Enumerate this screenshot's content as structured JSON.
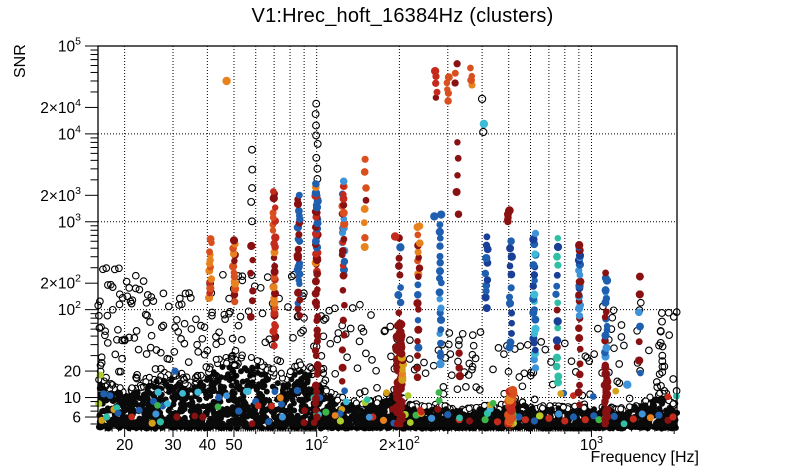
{
  "chart_data": {
    "type": "scatter",
    "title": "V1:Hrec_hoft_16384Hz (clusters)",
    "xlabel": "Frequency [Hz]",
    "ylabel": "SNR",
    "xscale": "log",
    "yscale": "log",
    "xlim": [
      16,
      2048
    ],
    "ylim": [
      4.5,
      100000
    ],
    "grid": true,
    "x_ticks": [
      {
        "v": 20,
        "label": "20"
      },
      {
        "v": 30,
        "label": "30"
      },
      {
        "v": 40,
        "label": "40"
      },
      {
        "v": 50,
        "label": "50"
      },
      {
        "v": 100,
        "label": "10^2"
      },
      {
        "v": 200,
        "label": "2×10^2"
      },
      {
        "v": 1000,
        "label": "10^3"
      }
    ],
    "y_ticks": [
      {
        "v": 6,
        "label": "6"
      },
      {
        "v": 10,
        "label": "10"
      },
      {
        "v": 20,
        "label": "20"
      },
      {
        "v": 100,
        "label": "10^2"
      },
      {
        "v": 200,
        "label": "2×10^2"
      },
      {
        "v": 1000,
        "label": "10^3"
      },
      {
        "v": 2000,
        "label": "2×10^3"
      },
      {
        "v": 10000,
        "label": "10^4"
      },
      {
        "v": 20000,
        "label": "2×10^4"
      },
      {
        "v": 100000,
        "label": "10^5"
      }
    ],
    "x_grid": [
      20,
      30,
      40,
      50,
      60,
      70,
      80,
      90,
      100,
      200,
      300,
      400,
      500,
      600,
      700,
      800,
      900,
      1000
    ],
    "y_grid": [
      10,
      100,
      1000,
      10000,
      100000
    ],
    "palette": {
      "black": "#0a0a0a",
      "maroon": "#8a1111",
      "red": "#c42b1c",
      "orangered": "#d94f1e",
      "orange": "#e8821e",
      "gold": "#d4a017",
      "yellowgreen": "#aecf2b",
      "green": "#3db54a",
      "teal": "#2ebfa5",
      "cyan": "#3fbbd8",
      "lightblue": "#3f93d8",
      "blue": "#1f5faf",
      "darkblue": "#1a3f96"
    },
    "floor": {
      "snr_min": 4.5,
      "count": 2600,
      "profile": [
        [
          16,
          18
        ],
        [
          18,
          14
        ],
        [
          20,
          13
        ],
        [
          23,
          15
        ],
        [
          26,
          19
        ],
        [
          30,
          21
        ],
        [
          33,
          15
        ],
        [
          36,
          16
        ],
        [
          40,
          24
        ],
        [
          45,
          30
        ],
        [
          50,
          29
        ],
        [
          55,
          33
        ],
        [
          60,
          30
        ],
        [
          65,
          25
        ],
        [
          70,
          21
        ],
        [
          78,
          18
        ],
        [
          85,
          26
        ],
        [
          95,
          23
        ],
        [
          105,
          16
        ],
        [
          115,
          11
        ],
        [
          130,
          9.5
        ],
        [
          150,
          9
        ],
        [
          170,
          10
        ],
        [
          190,
          13
        ],
        [
          200,
          11
        ],
        [
          220,
          9
        ],
        [
          250,
          8
        ],
        [
          280,
          8.5
        ],
        [
          300,
          8
        ],
        [
          340,
          7.5
        ],
        [
          380,
          8
        ],
        [
          420,
          8.5
        ],
        [
          460,
          8
        ],
        [
          500,
          9
        ],
        [
          560,
          9.5
        ],
        [
          620,
          8
        ],
        [
          700,
          8.5
        ],
        [
          800,
          8
        ],
        [
          900,
          8.5
        ],
        [
          1000,
          8
        ],
        [
          1100,
          8.5
        ],
        [
          1250,
          7.5
        ],
        [
          1400,
          8
        ],
        [
          1550,
          9
        ],
        [
          1700,
          12
        ],
        [
          1850,
          13
        ],
        [
          1950,
          9
        ],
        [
          2048,
          8.5
        ]
      ]
    },
    "open_circle_regions": [
      {
        "f": [
          16,
          24
        ],
        "s": [
          12,
          300
        ],
        "n": 55
      },
      {
        "f": [
          24,
          40
        ],
        "s": [
          12,
          160
        ],
        "n": 55
      },
      {
        "f": [
          40,
          90
        ],
        "s": [
          12,
          250
        ],
        "n": 60
      },
      {
        "f": [
          90,
          200
        ],
        "s": [
          10,
          120
        ],
        "n": 45
      },
      {
        "f": [
          200,
          420
        ],
        "s": [
          9,
          60
        ],
        "n": 35
      },
      {
        "f": [
          420,
          1000
        ],
        "s": [
          9,
          45
        ],
        "n": 30
      },
      {
        "f": [
          1000,
          2048
        ],
        "s": [
          9,
          120
        ],
        "n": 38
      }
    ],
    "columns": [
      {
        "f": 41,
        "s": [
          130,
          620
        ],
        "n": 14,
        "colors": [
          "orange",
          "orangered",
          "red"
        ]
      },
      {
        "f": 50,
        "s": [
          130,
          650
        ],
        "n": 14,
        "colors": [
          "orangered",
          "orange",
          "maroon"
        ]
      },
      {
        "f": 58,
        "s": [
          1000,
          6300
        ],
        "n": 5,
        "colors": [
          "open"
        ]
      },
      {
        "f": 58,
        "s": [
          80,
          550
        ],
        "n": 6,
        "colors": [
          "maroon"
        ]
      },
      {
        "f": 70,
        "s": [
          40,
          2300
        ],
        "n": 30,
        "colors": [
          "orangered",
          "maroon",
          "orange",
          "red"
        ]
      },
      {
        "f": 86,
        "s": [
          90,
          1900
        ],
        "n": 26,
        "colors": [
          "blue",
          "blue",
          "maroon"
        ]
      },
      {
        "f": 100,
        "s": [
          3200,
          22000
        ],
        "n": 8,
        "colors": [
          "open"
        ]
      },
      {
        "f": 100,
        "s": [
          250,
          2800
        ],
        "n": 34,
        "colors": [
          "blue",
          "blue",
          "maroon",
          "red",
          "orange"
        ]
      },
      {
        "f": 100,
        "s": [
          6,
          250
        ],
        "n": 22,
        "colors": [
          "maroon"
        ]
      },
      {
        "f": 125,
        "s": [
          250,
          2900
        ],
        "n": 26,
        "colors": [
          "maroon",
          "blue",
          "lightblue",
          "red",
          "orangered"
        ]
      },
      {
        "f": 125,
        "s": [
          15,
          250
        ],
        "n": 8,
        "colors": [
          "maroon"
        ]
      },
      {
        "f": 150,
        "s": [
          500,
          4800
        ],
        "n": 8,
        "colors": [
          "orange",
          "maroon",
          "orangered"
        ]
      },
      {
        "f": 200,
        "s": [
          4.8,
          70
        ],
        "n": 45,
        "colors": [
          "maroon"
        ],
        "xj": 2.6,
        "r": 4.2
      },
      {
        "f": 200,
        "s": [
          90,
          640
        ],
        "n": 9,
        "colors": [
          "maroon",
          "blue"
        ]
      },
      {
        "f": 205,
        "s": [
          15,
          40
        ],
        "n": 10,
        "colors": [
          "orange",
          "gold",
          "maroon"
        ]
      },
      {
        "f": 235,
        "s": [
          250,
          950
        ],
        "n": 10,
        "colors": [
          "orangered",
          "maroon",
          "orange"
        ]
      },
      {
        "f": 233,
        "s": [
          18,
          250
        ],
        "n": 12,
        "colors": [
          "blue",
          "maroon"
        ]
      },
      {
        "f": 282,
        "s": [
          28,
          1150
        ],
        "n": 20,
        "colors": [
          "blue",
          "lightblue",
          "blue"
        ]
      },
      {
        "f": 272,
        "s": [
          26000,
          50000
        ],
        "n": 5,
        "colors": [
          "red",
          "maroon"
        ]
      },
      {
        "f": 300,
        "s": [
          24000,
          46000
        ],
        "n": 5,
        "colors": [
          "orangered",
          "orange"
        ]
      },
      {
        "f": 322,
        "s": [
          40000,
          62000
        ],
        "n": 3,
        "colors": [
          "maroon",
          "orangered"
        ]
      },
      {
        "f": 366,
        "s": [
          36000,
          56000
        ],
        "n": 4,
        "colors": [
          "orange",
          "orangered"
        ]
      },
      {
        "f": 325,
        "s": [
          1300,
          8500
        ],
        "n": 5,
        "colors": [
          "maroon"
        ]
      },
      {
        "f": 330,
        "s": [
          18,
          30
        ],
        "n": 3,
        "colors": [
          "maroon"
        ]
      },
      {
        "f": 415,
        "s": [
          110,
          680
        ],
        "n": 11,
        "colors": [
          "blue",
          "darkblue"
        ]
      },
      {
        "f": 500,
        "s": [
          950,
          1400
        ],
        "n": 6,
        "colors": [
          "maroon"
        ]
      },
      {
        "f": 508,
        "s": [
          35,
          620
        ],
        "n": 13,
        "colors": [
          "blue",
          "darkblue"
        ]
      },
      {
        "f": 508,
        "s": [
          4.6,
          12
        ],
        "n": 24,
        "colors": [
          "orange",
          "orangered",
          "red"
        ],
        "xj": 2.4,
        "r": 4.2
      },
      {
        "f": 620,
        "s": [
          22,
          720
        ],
        "n": 24,
        "colors": [
          "blue",
          "darkblue",
          "lightblue",
          "cyan"
        ]
      },
      {
        "f": 750,
        "s": [
          14,
          620
        ],
        "n": 17,
        "colors": [
          "maroon",
          "blue",
          "teal",
          "darkblue"
        ]
      },
      {
        "f": 905,
        "s": [
          80,
          560
        ],
        "n": 22,
        "colors": [
          "blue",
          "lightblue",
          "darkblue",
          "maroon"
        ]
      },
      {
        "f": 905,
        "s": [
          8,
          60
        ],
        "n": 8,
        "colors": [
          "maroon"
        ]
      },
      {
        "f": 1130,
        "s": [
          18,
          270
        ],
        "n": 20,
        "colors": [
          "blue",
          "lightblue",
          "maroon"
        ]
      },
      {
        "f": 1130,
        "s": [
          4.8,
          18
        ],
        "n": 18,
        "colors": [
          "maroon"
        ],
        "xj": 2.0,
        "r": 3.8
      },
      {
        "f": 1500,
        "s": [
          18,
          230
        ],
        "n": 7,
        "colors": [
          "maroon",
          "blue",
          "lightblue"
        ]
      },
      {
        "f": 1800,
        "s": [
          14,
          95
        ],
        "n": 8,
        "colors": [
          "open"
        ]
      }
    ],
    "singles": [
      [
        47,
        40000,
        "orange"
      ],
      [
        406,
        13000,
        "cyan"
      ],
      [
        404,
        10500,
        "open"
      ],
      [
        400,
        25000,
        "open"
      ],
      [
        268,
        1150,
        "blue"
      ],
      [
        193,
        680,
        "red"
      ],
      [
        282,
        24,
        "lightblue"
      ],
      [
        1350,
        14,
        "lightblue"
      ]
    ],
    "floor_sprinkles": {
      "count": 55,
      "snr": [
        4.7,
        12
      ],
      "colors": [
        "blue",
        "blue",
        "lightblue",
        "red",
        "maroon",
        "maroon",
        "cyan",
        "green",
        "gold",
        "orange",
        "teal",
        "yellowgreen"
      ]
    },
    "sprinkle_points": [
      [
        16.3,
        18,
        "yellowgreen"
      ],
      [
        16.1,
        8.5,
        "yellowgreen"
      ],
      [
        16.5,
        5.5,
        "gold"
      ],
      [
        18.3,
        7.3,
        "gold"
      ],
      [
        16.8,
        11,
        "blue"
      ],
      [
        17.2,
        6,
        "teal"
      ],
      [
        25.5,
        9,
        "blue"
      ],
      [
        26,
        6.5,
        "lightblue"
      ],
      [
        26.5,
        11.5,
        "cyan"
      ],
      [
        27,
        5.3,
        "teal"
      ],
      [
        27.5,
        8,
        "blue"
      ],
      [
        25.2,
        5.1,
        "gold"
      ],
      [
        30.5,
        20,
        "blue"
      ],
      [
        31,
        6,
        "maroon"
      ],
      [
        37,
        11.5,
        "cyan"
      ],
      [
        38.5,
        6,
        "maroon"
      ],
      [
        44,
        10,
        "blue"
      ],
      [
        52,
        7,
        "blue"
      ],
      [
        60,
        9,
        "blue"
      ],
      [
        75,
        6,
        "lightblue"
      ],
      [
        85,
        12,
        "blue"
      ],
      [
        90,
        5.2,
        "maroon"
      ],
      [
        100,
        6.5,
        "green"
      ],
      [
        108,
        6.8,
        "green"
      ],
      [
        122,
        5.4,
        "yellowgreen"
      ],
      [
        150,
        8.8,
        "yellowgreen"
      ],
      [
        160,
        6,
        "red"
      ],
      [
        175,
        5.5,
        "orange"
      ],
      [
        210,
        6.4,
        "yellowgreen"
      ],
      [
        230,
        6.3,
        "green"
      ],
      [
        240,
        6.6,
        "gold"
      ],
      [
        262,
        5.8,
        "lightblue"
      ],
      [
        300,
        6.4,
        "blue"
      ],
      [
        330,
        5.6,
        "red"
      ],
      [
        360,
        5.4,
        "maroon"
      ],
      [
        410,
        5.6,
        "green"
      ],
      [
        418,
        6.6,
        "teal"
      ],
      [
        428,
        7.4,
        "cyan"
      ],
      [
        455,
        5.3,
        "red"
      ],
      [
        520,
        5.1,
        "yellowgreen"
      ],
      [
        545,
        6,
        "blue"
      ],
      [
        575,
        5.6,
        "red"
      ],
      [
        620,
        5.4,
        "blue"
      ],
      [
        650,
        6.2,
        "gold"
      ],
      [
        700,
        5.8,
        "red"
      ],
      [
        760,
        6.5,
        "lightblue"
      ],
      [
        800,
        5.4,
        "red"
      ],
      [
        860,
        6,
        "blue"
      ],
      [
        950,
        5.6,
        "red"
      ],
      [
        1020,
        6.2,
        "blue"
      ],
      [
        1065,
        5.6,
        "green"
      ],
      [
        1210,
        6.1,
        "blue"
      ],
      [
        1420,
        5.7,
        "red"
      ],
      [
        1530,
        6.5,
        "lightblue"
      ],
      [
        1640,
        5.9,
        "orange"
      ],
      [
        1760,
        6.3,
        "blue"
      ],
      [
        1900,
        5.5,
        "maroon"
      ],
      [
        1980,
        6,
        "red"
      ]
    ]
  }
}
